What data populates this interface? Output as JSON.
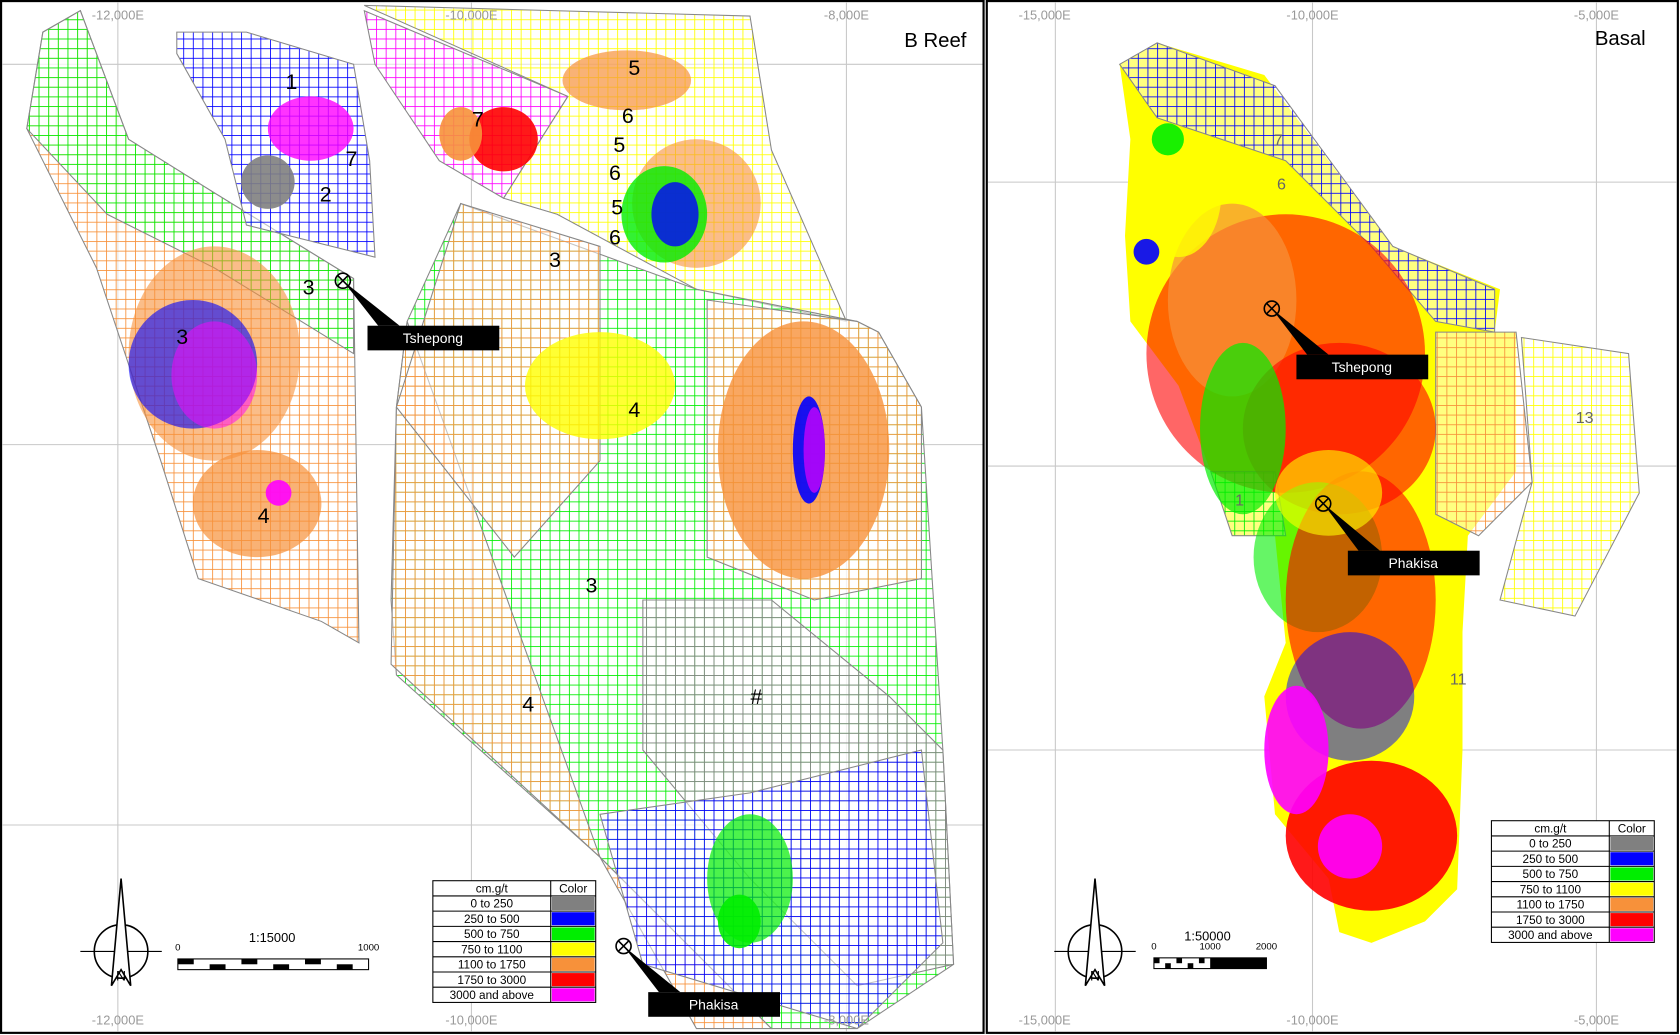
{
  "panels": [
    {
      "title": "B Reef",
      "grid_top": [
        "-12,000E",
        "-10,000E",
        "-8,000E"
      ],
      "grid_bottom": [
        "-12,000E",
        "-10,000E",
        "-8,000E"
      ],
      "blocks": [
        "1",
        "7",
        "2",
        "3",
        "3",
        "4",
        "4",
        "3",
        "4",
        "5",
        "6",
        "5",
        "6",
        "5",
        "6",
        "3",
        "7",
        "#"
      ],
      "markers": [
        "Tshepong",
        "Phakisa"
      ],
      "north": "N",
      "scale": {
        "ratio": "1:15000",
        "labels": [
          "0",
          "1000"
        ]
      },
      "legend": {
        "header": "cm.g/t",
        "color_header": "Color"
      }
    },
    {
      "title": "Basal",
      "grid_top": [
        "-15,000E",
        "-10,000E",
        "-5,000E"
      ],
      "grid_bottom": [
        "-15,000E",
        "-10,000E",
        "-5,000E"
      ],
      "blocks": [
        "7",
        "6",
        "1",
        "13",
        "11"
      ],
      "markers": [
        "Tshepong",
        "Phakisa"
      ],
      "north": "N",
      "scale": {
        "ratio": "1:50000",
        "labels": [
          "0",
          "1000",
          "2000"
        ]
      },
      "legend": {
        "header": "cm.g/t",
        "color_header": "Color"
      }
    }
  ],
  "classes": [
    {
      "label": "0 to 250",
      "color": "#808080"
    },
    {
      "label": "250 to 500",
      "color": "#0000ff"
    },
    {
      "label": "500 to 750",
      "color": "#00ee00"
    },
    {
      "label": "750 to 1100",
      "color": "#ffff00"
    },
    {
      "label": "1100 to 1750",
      "color": "#f7913a"
    },
    {
      "label": "1750 to 3000",
      "color": "#ff0000"
    },
    {
      "label": "3000 and above",
      "color": "#ff00ff"
    }
  ]
}
